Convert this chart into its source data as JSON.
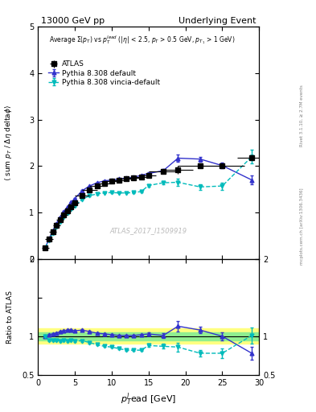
{
  "title_left": "13000 GeV pp",
  "title_right": "Underlying Event",
  "right_label_top": "Rivet 3.1.10, ≥ 2.7M events",
  "right_label_bottom": "mcplots.cern.ch [arXiv:1306.3436]",
  "watermark": "ATLAS_2017_I1509919",
  "main_ylabel": "⟨ sum p_T / Δη deltaφ⟩",
  "ratio_ylabel": "Ratio to ATLAS",
  "ratio_xlabel": "$p_T^l$ead [GeV]",
  "main_ylim": [
    0,
    5
  ],
  "ratio_ylim": [
    0.5,
    2
  ],
  "xlim": [
    0,
    30
  ],
  "atlas_x": [
    1.0,
    1.5,
    2.0,
    2.5,
    3.0,
    3.5,
    4.0,
    4.5,
    5.0,
    6.0,
    7.0,
    8.0,
    9.0,
    10.0,
    11.0,
    12.0,
    13.0,
    14.0,
    15.0,
    17.0,
    19.0,
    22.0,
    25.0,
    29.0
  ],
  "atlas_y": [
    0.24,
    0.42,
    0.58,
    0.73,
    0.85,
    0.95,
    1.04,
    1.13,
    1.21,
    1.36,
    1.48,
    1.57,
    1.63,
    1.67,
    1.7,
    1.72,
    1.74,
    1.76,
    1.79,
    1.88,
    1.92,
    2.0,
    2.0,
    2.18
  ],
  "atlas_yerr": [
    0.01,
    0.01,
    0.01,
    0.01,
    0.01,
    0.01,
    0.01,
    0.01,
    0.01,
    0.01,
    0.01,
    0.02,
    0.02,
    0.02,
    0.02,
    0.02,
    0.02,
    0.02,
    0.03,
    0.05,
    0.08,
    0.05,
    0.05,
    0.06
  ],
  "atlas_xerr": [
    0.5,
    0.5,
    0.5,
    0.5,
    0.5,
    0.5,
    0.5,
    0.5,
    0.5,
    1.0,
    1.0,
    1.0,
    1.0,
    1.0,
    1.0,
    1.0,
    1.0,
    1.0,
    1.0,
    2.0,
    2.0,
    3.0,
    3.0,
    2.0
  ],
  "pythia_default_x": [
    1.0,
    1.5,
    2.0,
    2.5,
    3.0,
    3.5,
    4.0,
    4.5,
    5.0,
    6.0,
    7.0,
    8.0,
    9.0,
    10.0,
    11.0,
    12.0,
    13.0,
    14.0,
    15.0,
    17.0,
    19.0,
    22.0,
    25.0,
    29.0
  ],
  "pythia_default_y": [
    0.24,
    0.43,
    0.6,
    0.76,
    0.9,
    1.02,
    1.12,
    1.22,
    1.3,
    1.47,
    1.57,
    1.64,
    1.68,
    1.7,
    1.72,
    1.74,
    1.76,
    1.8,
    1.84,
    1.9,
    2.17,
    2.15,
    2.01,
    1.7
  ],
  "pythia_default_yerr": [
    0.01,
    0.01,
    0.01,
    0.01,
    0.01,
    0.01,
    0.01,
    0.01,
    0.01,
    0.01,
    0.01,
    0.01,
    0.01,
    0.01,
    0.01,
    0.01,
    0.01,
    0.01,
    0.02,
    0.03,
    0.07,
    0.05,
    0.06,
    0.1
  ],
  "pythia_vincia_x": [
    1.0,
    1.5,
    2.0,
    2.5,
    3.0,
    3.5,
    4.0,
    4.5,
    5.0,
    6.0,
    7.0,
    8.0,
    9.0,
    10.0,
    11.0,
    12.0,
    13.0,
    14.0,
    15.0,
    17.0,
    19.0,
    22.0,
    25.0,
    29.0
  ],
  "pythia_vincia_y": [
    0.24,
    0.4,
    0.55,
    0.69,
    0.8,
    0.9,
    0.98,
    1.07,
    1.14,
    1.28,
    1.36,
    1.4,
    1.42,
    1.43,
    1.42,
    1.42,
    1.43,
    1.45,
    1.58,
    1.64,
    1.65,
    1.55,
    1.57,
    2.2
  ],
  "pythia_vincia_yerr": [
    0.01,
    0.01,
    0.01,
    0.01,
    0.01,
    0.01,
    0.01,
    0.01,
    0.01,
    0.01,
    0.01,
    0.01,
    0.01,
    0.01,
    0.01,
    0.01,
    0.01,
    0.01,
    0.03,
    0.04,
    0.08,
    0.06,
    0.08,
    0.15
  ],
  "ratio_pythia_default_y": [
    1.0,
    1.02,
    1.03,
    1.04,
    1.06,
    1.07,
    1.08,
    1.08,
    1.07,
    1.08,
    1.06,
    1.04,
    1.03,
    1.02,
    1.01,
    1.01,
    1.01,
    1.02,
    1.03,
    1.01,
    1.13,
    1.08,
    1.0,
    0.78
  ],
  "ratio_pythia_default_yerr": [
    0.01,
    0.01,
    0.01,
    0.01,
    0.01,
    0.01,
    0.01,
    0.01,
    0.01,
    0.01,
    0.01,
    0.01,
    0.01,
    0.01,
    0.01,
    0.01,
    0.01,
    0.01,
    0.02,
    0.03,
    0.07,
    0.04,
    0.05,
    0.08
  ],
  "ratio_pythia_vincia_y": [
    1.0,
    0.95,
    0.95,
    0.95,
    0.94,
    0.95,
    0.94,
    0.95,
    0.94,
    0.94,
    0.92,
    0.89,
    0.87,
    0.86,
    0.84,
    0.82,
    0.82,
    0.82,
    0.88,
    0.87,
    0.86,
    0.78,
    0.78,
    1.01
  ],
  "ratio_pythia_vincia_yerr": [
    0.01,
    0.01,
    0.01,
    0.01,
    0.01,
    0.01,
    0.01,
    0.01,
    0.01,
    0.01,
    0.01,
    0.01,
    0.01,
    0.01,
    0.01,
    0.01,
    0.01,
    0.01,
    0.02,
    0.03,
    0.06,
    0.04,
    0.06,
    0.1
  ],
  "atlas_color": "#000000",
  "pythia_default_color": "#3333cc",
  "pythia_vincia_color": "#00bbbb",
  "ratio_band_color_green": "#90ee90",
  "ratio_band_color_yellow": "#ffff80",
  "band_inner": 0.05,
  "band_outer": 0.1
}
